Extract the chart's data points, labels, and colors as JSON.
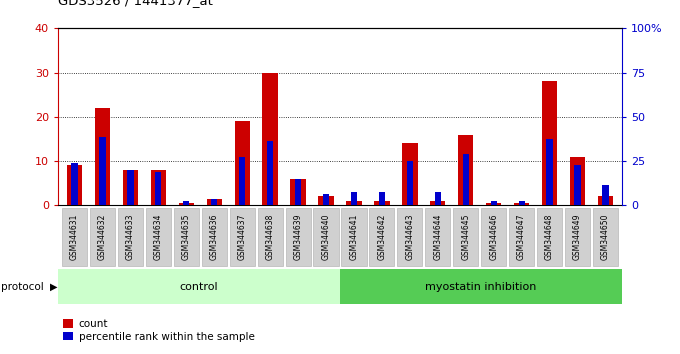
{
  "title": "GDS3526 / 1441377_at",
  "samples": [
    "GSM344631",
    "GSM344632",
    "GSM344633",
    "GSM344634",
    "GSM344635",
    "GSM344636",
    "GSM344637",
    "GSM344638",
    "GSM344639",
    "GSM344640",
    "GSM344641",
    "GSM344642",
    "GSM344643",
    "GSM344644",
    "GSM344645",
    "GSM344646",
    "GSM344647",
    "GSM344648",
    "GSM344649",
    "GSM344650"
  ],
  "count_values": [
    9,
    22,
    8,
    8,
    0.5,
    1.5,
    19,
    30,
    6,
    2,
    1,
    1,
    14,
    1,
    16,
    0.5,
    0.5,
    28,
    11,
    2
  ],
  "percentile_values": [
    9.5,
    15.5,
    8,
    7.5,
    1,
    1.5,
    11,
    14.5,
    6,
    2.5,
    3,
    3,
    10,
    3,
    11.5,
    1,
    1,
    15,
    9,
    4.5
  ],
  "groups": [
    {
      "label": "control",
      "n": 10,
      "color": "#ccffcc"
    },
    {
      "label": "myostatin inhibition",
      "n": 10,
      "color": "#55cc55"
    }
  ],
  "ylim_left": [
    0,
    40
  ],
  "ylim_right": [
    0,
    100
  ],
  "yticks_left": [
    0,
    10,
    20,
    30,
    40
  ],
  "yticks_right": [
    0,
    25,
    50,
    75,
    100
  ],
  "ytick_labels_right": [
    "0",
    "25",
    "50",
    "75",
    "100%"
  ],
  "left_tick_color": "#cc0000",
  "right_tick_color": "#0000cc",
  "bar_color_red": "#cc0000",
  "bar_color_blue": "#0000cc",
  "bg_color": "#ffffff",
  "protocol_label": "protocol"
}
